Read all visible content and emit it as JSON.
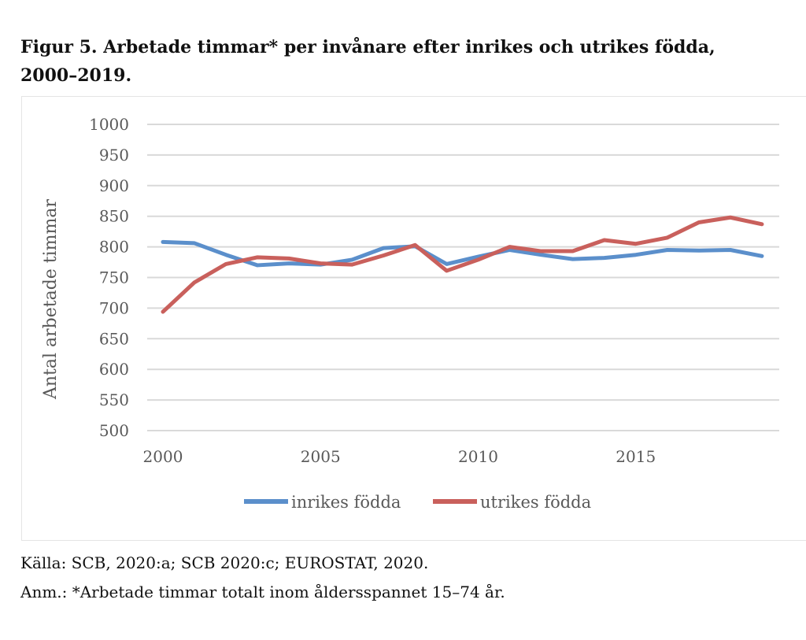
{
  "title": "Figur 5. Arbetade timmar* per invånare efter inrikes och utrikes födda, 2000–2019.",
  "source": "Källa: SCB, 2020:a; SCB 2020:c; EUROSTAT, 2020.",
  "note": "Anm.: *Arbetade timmar totalt inom åldersspannet 15–74 år.",
  "chart_data": {
    "type": "line",
    "title": "Figur 5. Arbetade timmar* per invånare efter inrikes och utrikes födda, 2000–2019.",
    "xlabel": "",
    "ylabel": "Antal arbetade timmar",
    "x": [
      2000,
      2001,
      2002,
      2003,
      2004,
      2005,
      2006,
      2007,
      2008,
      2009,
      2010,
      2011,
      2012,
      2013,
      2014,
      2015,
      2016,
      2017,
      2018,
      2019
    ],
    "xticks": [
      "2000",
      "2005",
      "2010",
      "2015"
    ],
    "yticks": [
      "500",
      "550",
      "600",
      "650",
      "700",
      "750",
      "800",
      "850",
      "900",
      "950",
      "1000"
    ],
    "ylim": [
      500,
      1000
    ],
    "grid": true,
    "legend_position": "bottom",
    "series": [
      {
        "name": "inrikes födda",
        "color": "#5b8fcb",
        "values": [
          808,
          806,
          787,
          770,
          773,
          771,
          779,
          798,
          801,
          772,
          784,
          795,
          787,
          780,
          782,
          787,
          795,
          794,
          795,
          785
        ]
      },
      {
        "name": "utrikes födda",
        "color": "#c9605c",
        "values": [
          694,
          742,
          772,
          783,
          781,
          773,
          771,
          786,
          803,
          761,
          779,
          800,
          793,
          793,
          811,
          805,
          815,
          840,
          848,
          837
        ]
      }
    ]
  }
}
